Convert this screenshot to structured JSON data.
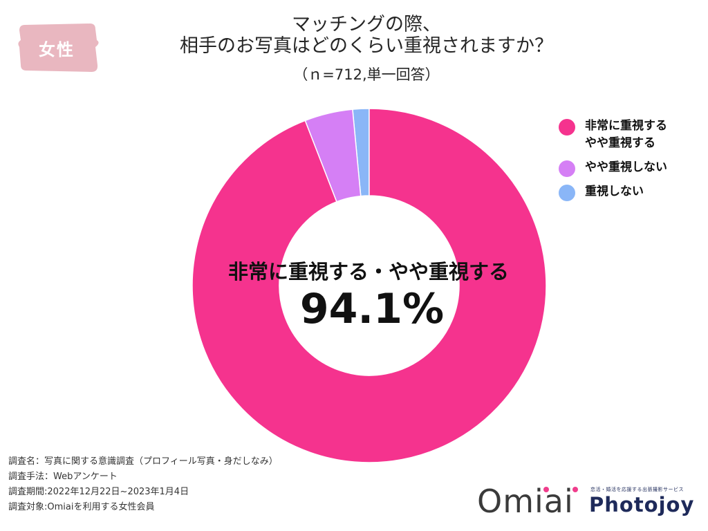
{
  "badge": {
    "label": "女性",
    "color": "#e9b7c0"
  },
  "header": {
    "title_line1": "マッチングの際、",
    "title_line2": "相手のお写真はどのくらい重視されますか？",
    "subtitle": "（ｎ=712,単一回答）"
  },
  "center": {
    "label": "非常に重視する・やや重視する",
    "value": "94.1%"
  },
  "chart_data": {
    "type": "pie",
    "variant": "donut",
    "title": "マッチングの際、相手のお写真はどのくらい重視されますか？",
    "n": 712,
    "unit": "%",
    "legend_position": "right",
    "series": [
      {
        "name": "非常に重視する\nやや重視する",
        "value": 94.1,
        "color": "#f5338e"
      },
      {
        "name": "やや重視しない",
        "value": 4.4,
        "color": "#d57ff5"
      },
      {
        "name": "重視しない",
        "value": 1.5,
        "color": "#8ab6f7"
      }
    ]
  },
  "footer": {
    "line1": "調査名：写真に関する意識調査（プロフィール写真・身だしなみ）",
    "line2": "調査手法：Webアンケート",
    "line3": "調査期間:2022年12月22日~2023年1月4日",
    "line4": "調査対象:Omiaiを利用する女性会員"
  },
  "logos": {
    "omiai": "Omiai",
    "photojoy_tagline": "恋活・婚活を応援する出張撮影サービス",
    "photojoy": "Photojoy"
  }
}
